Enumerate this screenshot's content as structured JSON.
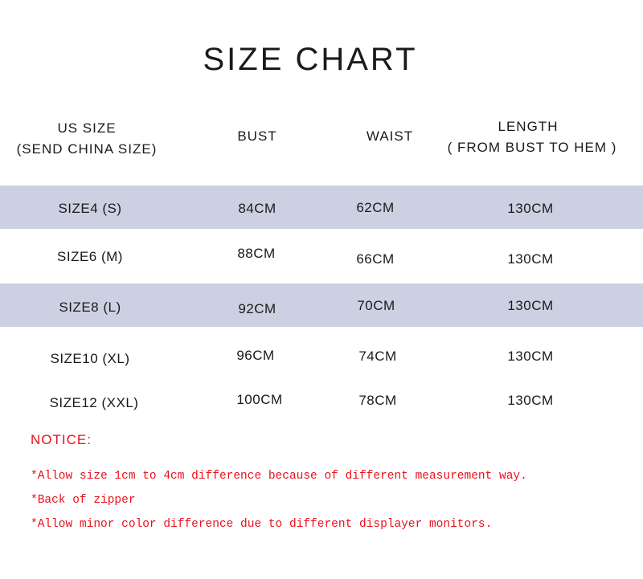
{
  "title": "SIZE CHART",
  "colors": {
    "band": "#cdd0e2",
    "notice": "#e8101a",
    "text": "#1a1a1a"
  },
  "headers": {
    "size_line1": "US SIZE",
    "size_line2": "(SEND CHINA SIZE)",
    "bust": "BUST",
    "waist": "WAIST",
    "length_line1": "LENGTH",
    "length_line2": "( FROM BUST TO HEM )"
  },
  "rows": [
    {
      "size": "SIZE4 (S)",
      "bust": "84CM",
      "waist": "62CM",
      "length": "130CM"
    },
    {
      "size": "SIZE6 (M)",
      "bust": "88CM",
      "waist": "66CM",
      "length": "130CM"
    },
    {
      "size": "SIZE8 (L)",
      "bust": "92CM",
      "waist": "70CM",
      "length": "130CM"
    },
    {
      "size": "SIZE10 (XL)",
      "bust": "96CM",
      "waist": "74CM",
      "length": "130CM"
    },
    {
      "size": "SIZE12 (XXL)",
      "bust": "100CM",
      "waist": "78CM",
      "length": "130CM"
    }
  ],
  "notice": {
    "heading": "NOTICE:",
    "items": [
      "*Allow size 1cm to 4cm difference because of different measurement way.",
      "*Back of zipper",
      "*Allow minor color difference due to different displayer monitors."
    ]
  }
}
